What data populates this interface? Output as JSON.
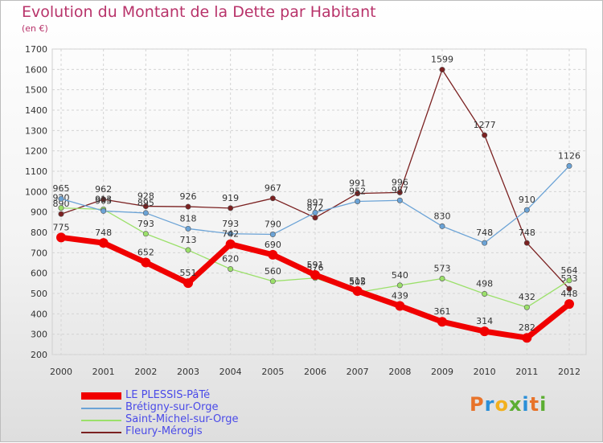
{
  "title": "Evolution du Montant de la Dette par Habitant",
  "unit": "(en €)",
  "brand": {
    "letters": [
      "P",
      "r",
      "o",
      "x",
      "i",
      "t",
      "i"
    ],
    "colors": [
      "#e8732a",
      "#2a8fd8",
      "#f2b01e",
      "#5cae32",
      "#2a8fd8",
      "#e8732a",
      "#5cae32"
    ]
  },
  "chart_data": {
    "type": "line",
    "title": "Evolution du Montant de la Dette par Habitant",
    "ylabel": "(en €)",
    "xlabel": "",
    "x": [
      "2000",
      "2001",
      "2002",
      "2003",
      "2004",
      "2005",
      "2006",
      "2007",
      "2008",
      "2009",
      "2010",
      "2011",
      "2012"
    ],
    "ylim": [
      200,
      1700
    ],
    "yticks": [
      "200",
      "300",
      "400",
      "500",
      "600",
      "700",
      "800",
      "900",
      "1000",
      "1100",
      "1200",
      "1300",
      "1400",
      "1500",
      "1600",
      "1700"
    ],
    "grid": true,
    "legend_position": "bottom-left",
    "series": [
      {
        "name": "Fleury-Mérogis",
        "color": "#7b2121",
        "values": [
          890,
          962,
          928,
          926,
          919,
          967,
          872,
          991,
          996,
          1599,
          1277,
          748,
          523
        ],
        "labels": [
          "890",
          "962",
          "928",
          "926",
          "919",
          "967",
          "872",
          "991",
          "996",
          "1599",
          "1277",
          "748",
          "523"
        ]
      },
      {
        "name": "Saint-Michel-sur-Orge",
        "color": "#9be06a",
        "values": [
          920,
          913,
          793,
          713,
          620,
          560,
          576,
          505,
          540,
          573,
          498,
          432,
          564
        ],
        "labels": [
          "920",
          "913",
          "793",
          "713",
          "620",
          "560",
          "576",
          "505",
          "540",
          "573",
          "498",
          "432",
          "564"
        ]
      },
      {
        "name": "Brétigny-sur-Orge",
        "color": "#6ba3d6",
        "values": [
          965,
          905,
          895,
          818,
          793,
          790,
          897,
          952,
          957,
          830,
          748,
          910,
          1126
        ],
        "labels": [
          "965",
          "905",
          "895",
          "818",
          "793",
          "790",
          "897",
          "952",
          "957",
          "830",
          "748",
          "910",
          "1126"
        ]
      },
      {
        "name": "LE PLESSIS-PâTé",
        "color": "#f00000",
        "values": [
          775,
          748,
          652,
          551,
          742,
          690,
          591,
          512,
          439,
          361,
          314,
          282,
          448
        ],
        "labels": [
          "775",
          "748",
          "652",
          "551",
          "742",
          "690",
          "591",
          "512",
          "439",
          "361",
          "314",
          "282",
          "448"
        ]
      }
    ],
    "legend": [
      {
        "name": "LE PLESSIS-PâTé",
        "color": "#f00000"
      },
      {
        "name": "Brétigny-sur-Orge",
        "color": "#6ba3d6"
      },
      {
        "name": "Saint-Michel-sur-Orge",
        "color": "#9be06a"
      },
      {
        "name": "Fleury-Mérogis",
        "color": "#7b2121"
      }
    ]
  }
}
